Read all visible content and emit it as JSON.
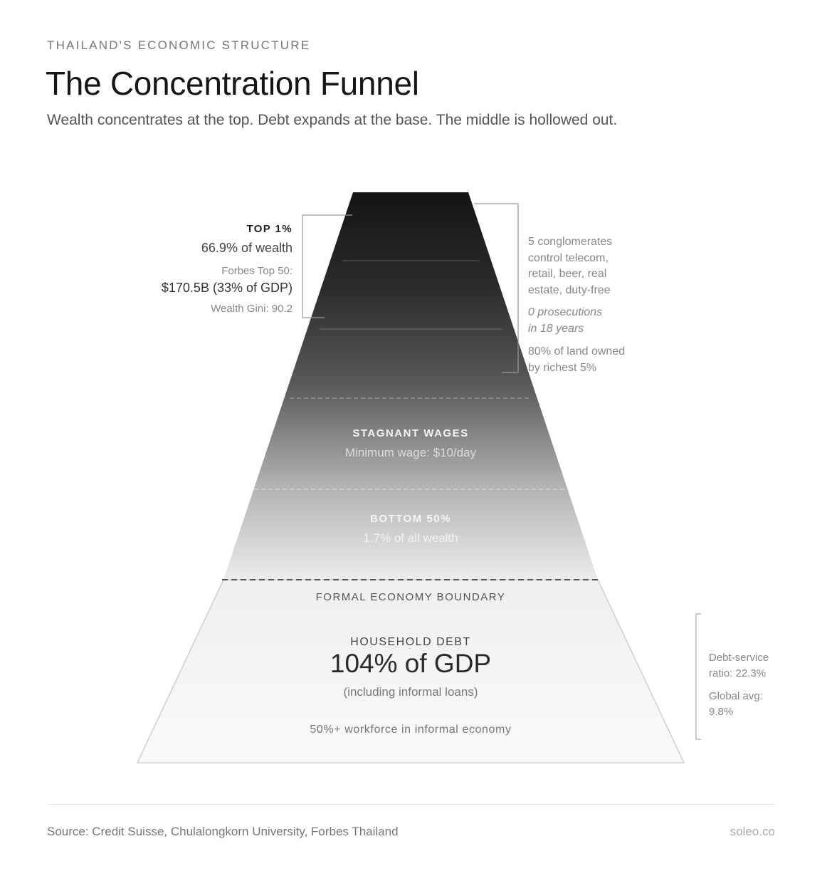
{
  "header": {
    "eyebrow": "THAILAND'S ECONOMIC STRUCTURE",
    "title": "The Concentration Funnel",
    "subtitle": "Wealth concentrates at the top. Debt expands at the base. The middle is hollowed out."
  },
  "top": {
    "label": "TOP 1%",
    "wealth": "66.9% of wealth",
    "forbes_label": "Forbes Top 50:",
    "forbes_value": "$170.5B (33% of GDP)",
    "gini": "Wealth Gini: 90.2"
  },
  "top_notes": {
    "conglomerates": [
      "5 conglomerates",
      "control telecom,",
      "retail, beer, real",
      "estate, duty-free"
    ],
    "prosecutions": [
      "0 prosecutions",
      "in 18 years"
    ],
    "land": [
      "80% of land owned",
      "by richest 5%"
    ]
  },
  "middle": {
    "label": "STAGNANT WAGES",
    "detail": "Minimum wage: $10/day"
  },
  "bottom": {
    "label": "BOTTOM 50%",
    "detail": "1.7% of all wealth"
  },
  "boundary": {
    "label": "FORMAL ECONOMY BOUNDARY"
  },
  "debt": {
    "label": "HOUSEHOLD DEBT",
    "value": "104% of GDP",
    "note": "(including informal loans)",
    "informal": "50%+ workforce in informal economy"
  },
  "debt_notes": {
    "ratio": [
      "Debt-service",
      "ratio: 22.3%"
    ],
    "global": [
      "Global avg:",
      "9.8%"
    ]
  },
  "footer": {
    "source": "Source: Credit Suisse, Chulalongkorn University, Forbes Thailand",
    "brand": "soleo.co"
  }
}
